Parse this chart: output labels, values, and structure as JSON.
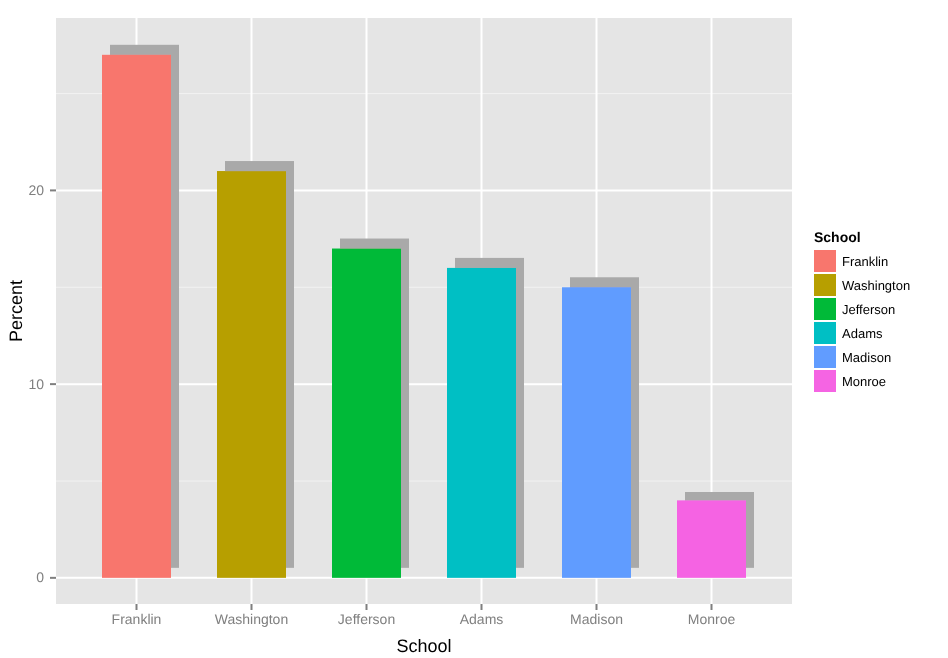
{
  "chart_data": {
    "type": "bar",
    "xlabel": "School",
    "ylabel": "Percent",
    "legend_title": "School",
    "categories": [
      "Franklin",
      "Washington",
      "Jefferson",
      "Adams",
      "Madison",
      "Monroe"
    ],
    "series": [
      {
        "name": "Franklin",
        "color": "#f8766d",
        "values": [
          27,
          null,
          null,
          null,
          null,
          null
        ]
      },
      {
        "name": "Washington",
        "color": "#b79f00",
        "values": [
          null,
          21,
          null,
          null,
          null,
          null
        ]
      },
      {
        "name": "Jefferson",
        "color": "#00ba38",
        "values": [
          null,
          null,
          17,
          null,
          null,
          null
        ]
      },
      {
        "name": "Adams",
        "color": "#00bfc4",
        "values": [
          null,
          null,
          null,
          16,
          null,
          null
        ]
      },
      {
        "name": "Madison",
        "color": "#619cff",
        "values": [
          null,
          null,
          null,
          null,
          15,
          null
        ]
      },
      {
        "name": "Monroe",
        "color": "#f564e3",
        "values": [
          null,
          null,
          null,
          null,
          null,
          4
        ]
      }
    ],
    "ylim": [
      -1.35,
      28.9
    ],
    "yticks": [
      0,
      10,
      20
    ],
    "grid": true,
    "legend": "right"
  }
}
